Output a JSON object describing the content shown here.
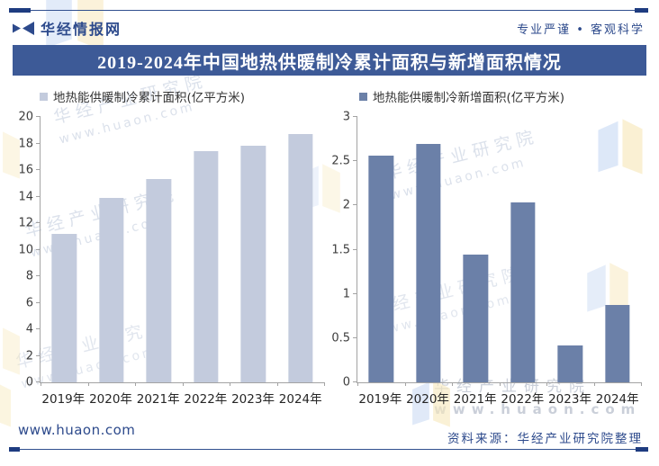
{
  "header": {
    "brand": "华经情报网",
    "tagline": "专业严谨 • 客观科学"
  },
  "title": "2019-2024年中国地热供暖制冷累计面积与新增面积情况",
  "chart_data": [
    {
      "type": "bar",
      "legend": "地热能供暖制冷累计面积(亿平方米)",
      "categories": [
        "2019年",
        "2020年",
        "2021年",
        "2022年",
        "2023年",
        "2024年"
      ],
      "values": [
        11.2,
        13.9,
        15.3,
        17.4,
        17.8,
        18.7
      ],
      "ylim": [
        0,
        20
      ],
      "ytick_step": 2,
      "bar_color": "#c3cbdd",
      "grid": false,
      "legend_position": "top-left",
      "xlabel": "",
      "ylabel": ""
    },
    {
      "type": "bar",
      "legend": "地热能供暖制冷新增面积(亿平方米)",
      "categories": [
        "2019年",
        "2020年",
        "2021年",
        "2022年",
        "2023年",
        "2024年"
      ],
      "values": [
        2.56,
        2.69,
        1.44,
        2.03,
        0.42,
        0.87
      ],
      "ylim": [
        0,
        3
      ],
      "ytick_step": 0.5,
      "bar_color": "#6b80a8",
      "grid": false,
      "legend_position": "top-left",
      "xlabel": "",
      "ylabel": ""
    }
  ],
  "footer": {
    "site": "www.huaon.com",
    "source": "资料来源：华经产业研究院整理"
  },
  "watermark": {
    "line1": "华经产业研究院",
    "line2": "www.huaon.com"
  },
  "colors": {
    "brand_navy": "#2d4a8c",
    "title_bar_bg": "#3d5a97",
    "rule_line": "#31508f",
    "rule_cap": "#1e3c80",
    "axis_gray": "#a3a3a3",
    "cumulative_bar": "#c3cbdd",
    "new_bar": "#6b80a8",
    "wm_blue": "#ccdcf5",
    "wm_yellow": "#f8e9bc"
  }
}
